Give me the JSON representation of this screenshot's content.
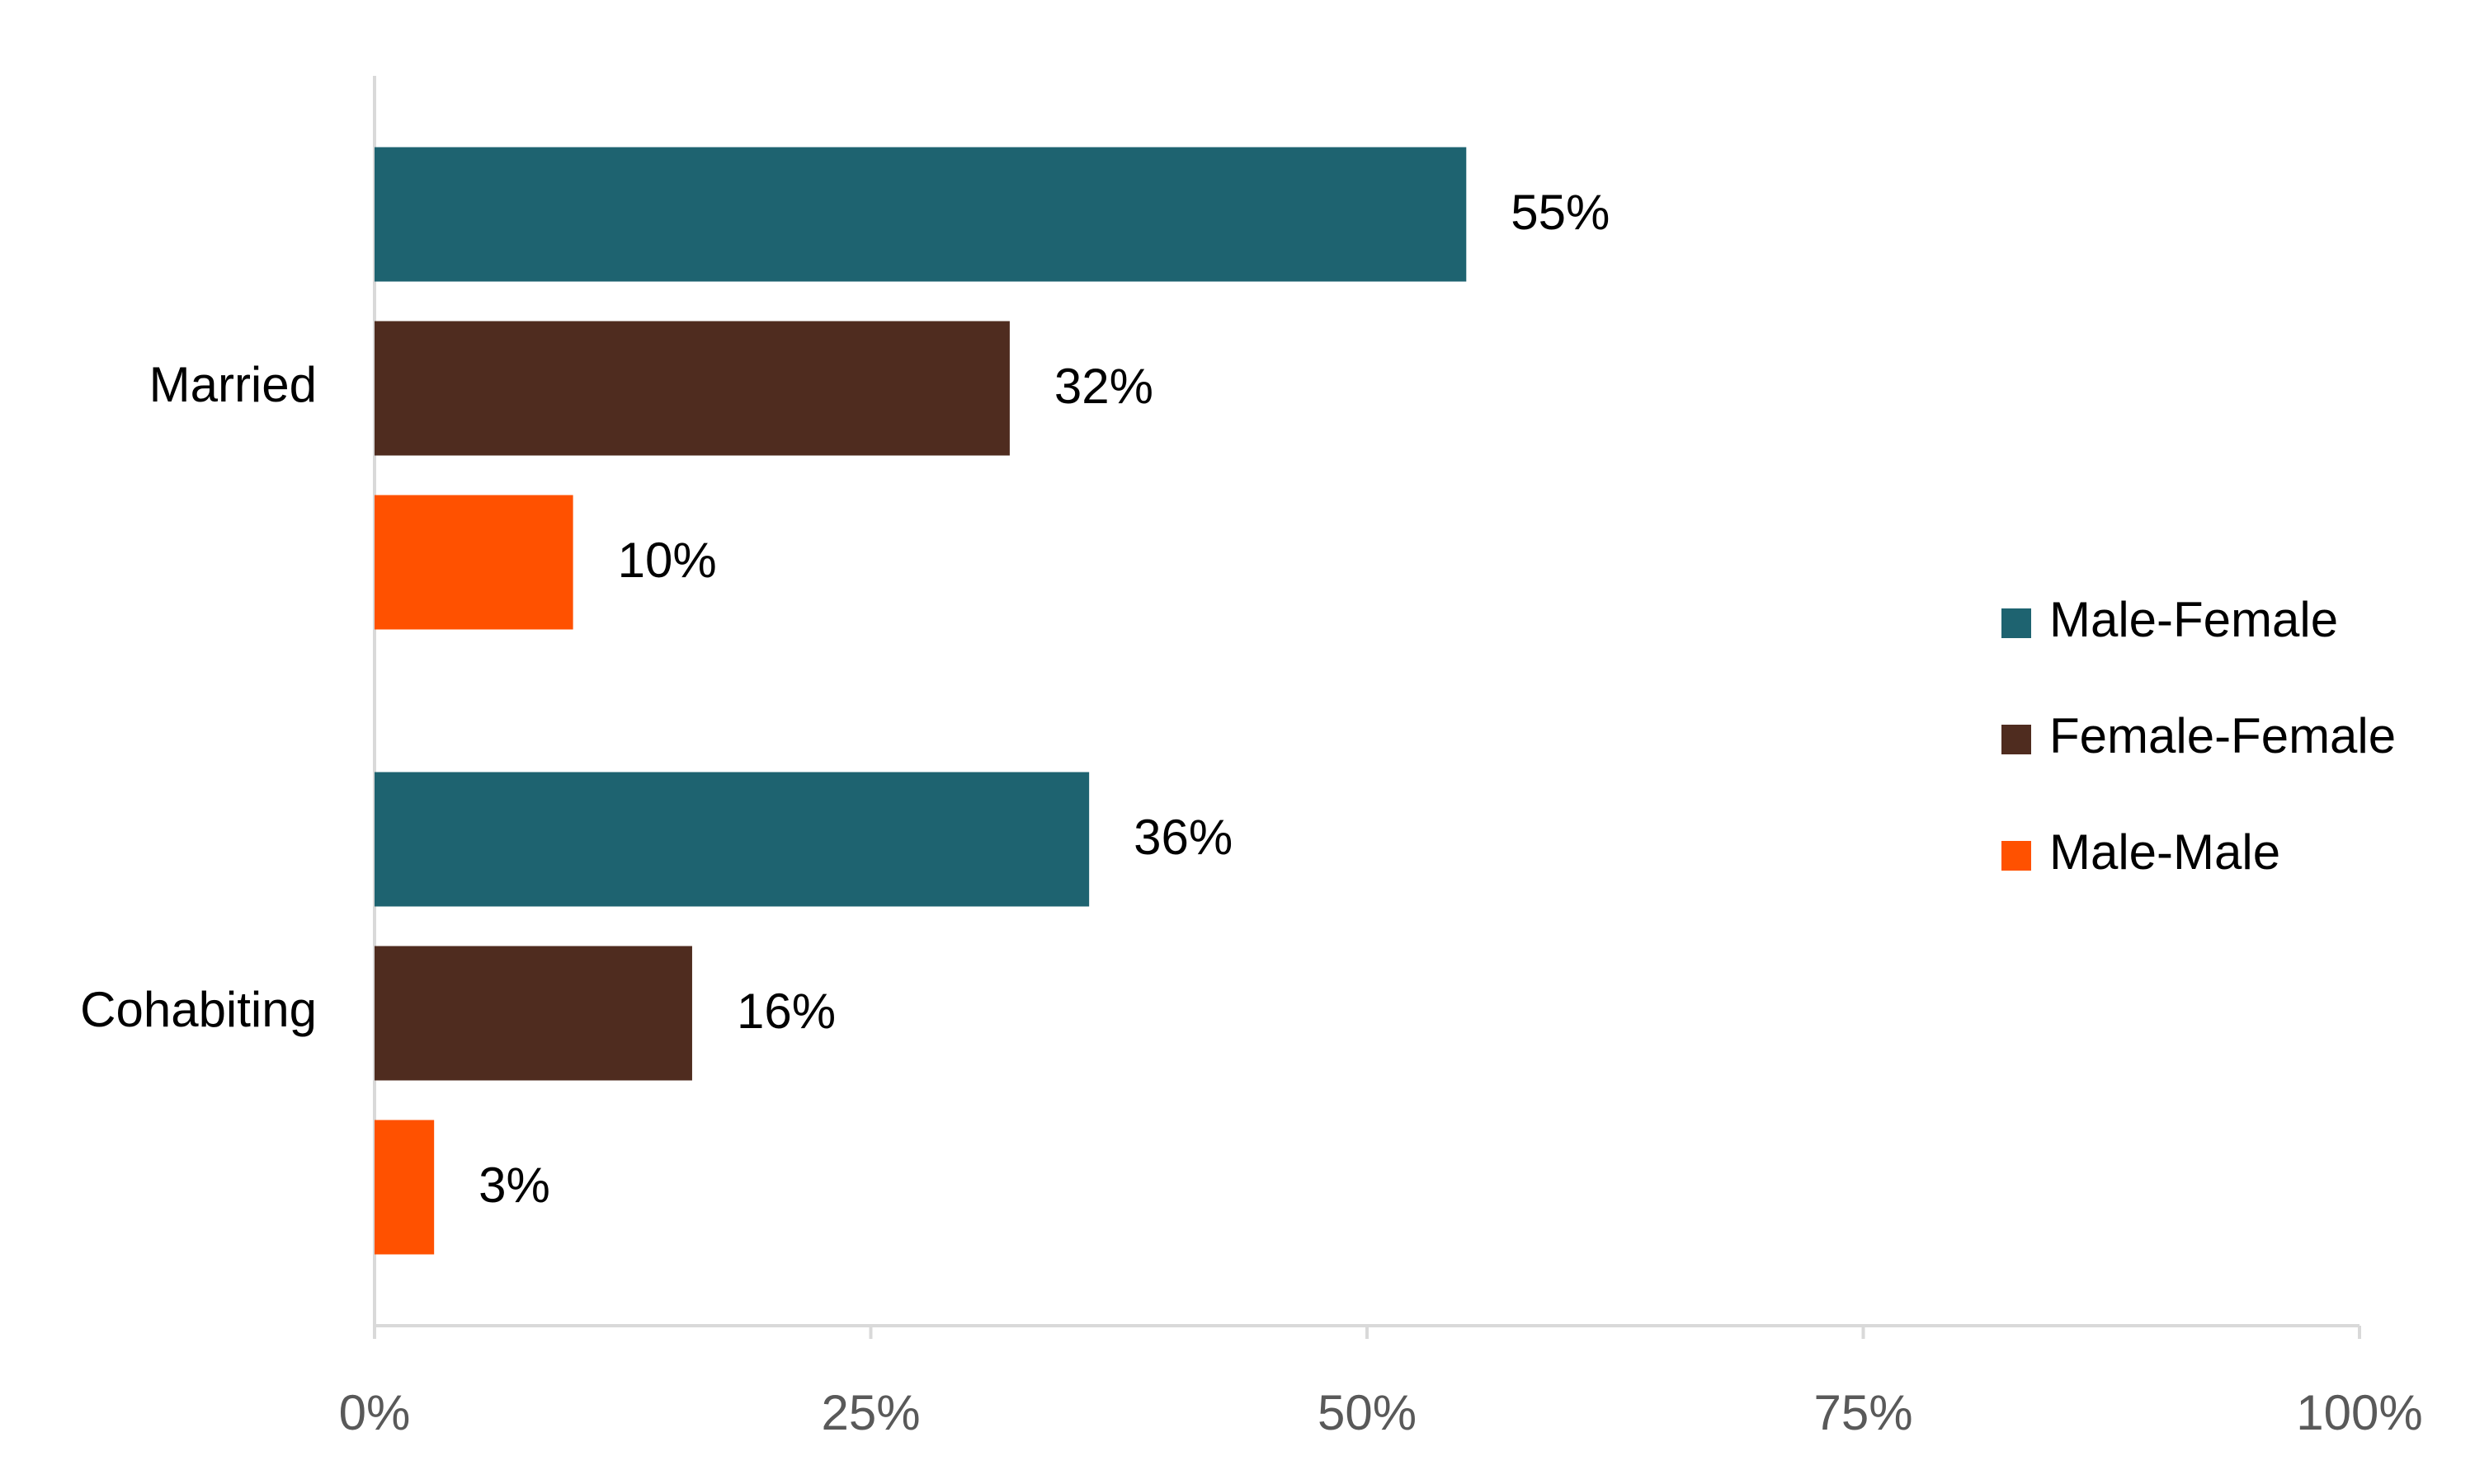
{
  "chart_data": {
    "type": "bar",
    "orientation": "horizontal",
    "categories": [
      "Married",
      "Cohabiting"
    ],
    "series": [
      {
        "name": "Male-Female",
        "color": "#1e6370",
        "values": [
          55,
          36
        ],
        "value_labels": [
          "55%",
          "36%"
        ]
      },
      {
        "name": "Female-Female",
        "color": "#4f2c1f",
        "values": [
          32,
          16
        ],
        "value_labels": [
          "32%",
          "16%"
        ]
      },
      {
        "name": "Male-Male",
        "color": "#ff5100",
        "values": [
          10,
          3
        ],
        "value_labels": [
          "10%",
          "3%"
        ]
      }
    ],
    "xlim": [
      0,
      100
    ],
    "xticks": [
      {
        "value": 0,
        "label": "0%"
      },
      {
        "value": 25,
        "label": "25%"
      },
      {
        "value": 50,
        "label": "50%"
      },
      {
        "value": 75,
        "label": "75%"
      },
      {
        "value": 100,
        "label": "100%"
      }
    ],
    "grid": false,
    "legend": "right"
  }
}
